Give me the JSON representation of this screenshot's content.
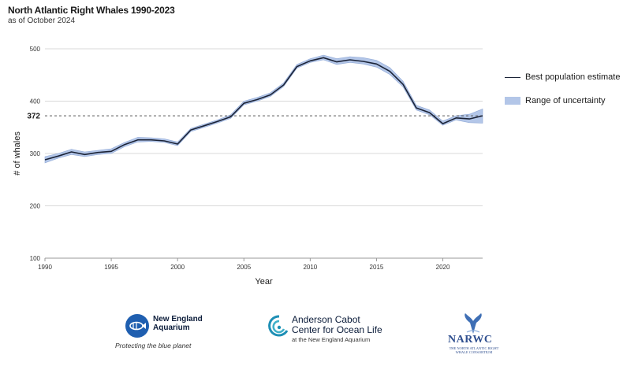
{
  "chart_data": {
    "type": "line",
    "title": "North Atlantic Right Whales 1990-2023",
    "subtitle": "as of October 2024",
    "xlabel": "Year",
    "ylabel": "# of whales",
    "xlim": [
      1990,
      2023
    ],
    "ylim": [
      100,
      500
    ],
    "xticks": [
      "1990",
      "1995",
      "2000",
      "2005",
      "2010",
      "2015",
      "2020"
    ],
    "yticks": [
      "100",
      "200",
      "300",
      "400",
      "500"
    ],
    "x": [
      1990,
      1991,
      1992,
      1993,
      1994,
      1995,
      1996,
      1997,
      1998,
      1999,
      2000,
      2001,
      2002,
      2003,
      2004,
      2005,
      2006,
      2007,
      2008,
      2009,
      2010,
      2011,
      2012,
      2013,
      2014,
      2015,
      2016,
      2017,
      2018,
      2019,
      2020,
      2021,
      2022,
      2023
    ],
    "series": [
      {
        "name": "Best population estimate",
        "values": [
          288,
          295,
          303,
          298,
          302,
          304,
          317,
          326,
          326,
          324,
          318,
          345,
          353,
          361,
          370,
          396,
          403,
          412,
          431,
          466,
          477,
          483,
          475,
          479,
          476,
          471,
          457,
          432,
          387,
          378,
          357,
          368,
          366,
          372
        ]
      }
    ],
    "uncertainty": {
      "name": "Range of uncertainty",
      "lower": [
        282,
        291,
        298,
        294,
        298,
        300,
        313,
        322,
        323,
        321,
        315,
        342,
        350,
        358,
        367,
        393,
        400,
        409,
        428,
        463,
        474,
        479,
        470,
        474,
        471,
        465,
        451,
        427,
        383,
        374,
        354,
        364,
        359,
        358
      ],
      "upper": [
        294,
        300,
        308,
        303,
        306,
        309,
        321,
        331,
        330,
        328,
        322,
        348,
        356,
        364,
        374,
        400,
        407,
        416,
        435,
        470,
        481,
        488,
        481,
        485,
        483,
        478,
        464,
        438,
        392,
        383,
        362,
        372,
        375,
        385
      ]
    },
    "reference_line": {
      "value": 372,
      "label": "372",
      "style": "dashed"
    },
    "legend": [
      "Best population estimate",
      "Range of uncertainty"
    ],
    "legend_position": "right",
    "colors": {
      "line": "#1b2337",
      "band": "#b3c6e8",
      "band_edge": "#8fa8d6",
      "grid": "#d9d9d9",
      "reference": "#555555"
    }
  },
  "logos": {
    "nea": {
      "name": "New England Aquarium",
      "tagline": "Protecting the blue planet"
    },
    "acc": {
      "name_line1": "Anderson Cabot",
      "name_line2": "Center for Ocean Life",
      "sub": "at the New England Aquarium"
    },
    "narwc": {
      "name": "NARWC",
      "sub": "THE NORTH ATLANTIC RIGHT WHALE CONSORTIUM"
    }
  }
}
